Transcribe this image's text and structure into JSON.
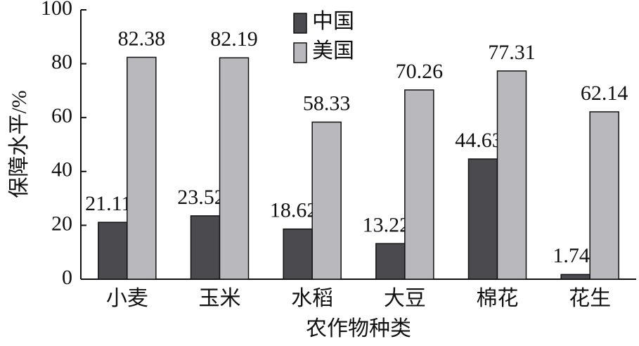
{
  "chart_data": {
    "type": "bar",
    "x_label": "农作物种类",
    "y_label": "保障水平/%",
    "categories": [
      "小麦",
      "玉米",
      "水稻",
      "大豆",
      "棉花",
      "花生"
    ],
    "series": [
      {
        "name": "中国",
        "color": "#4a4a4f",
        "values": [
          21.11,
          23.52,
          18.62,
          13.22,
          44.63,
          1.74
        ]
      },
      {
        "name": "美国",
        "color": "#b9b9bd",
        "values": [
          82.38,
          82.19,
          58.33,
          70.26,
          77.31,
          62.14
        ]
      }
    ],
    "ylim": [
      0,
      100
    ],
    "yticks": [
      0,
      20,
      40,
      60,
      80,
      100
    ],
    "legend": "top"
  }
}
